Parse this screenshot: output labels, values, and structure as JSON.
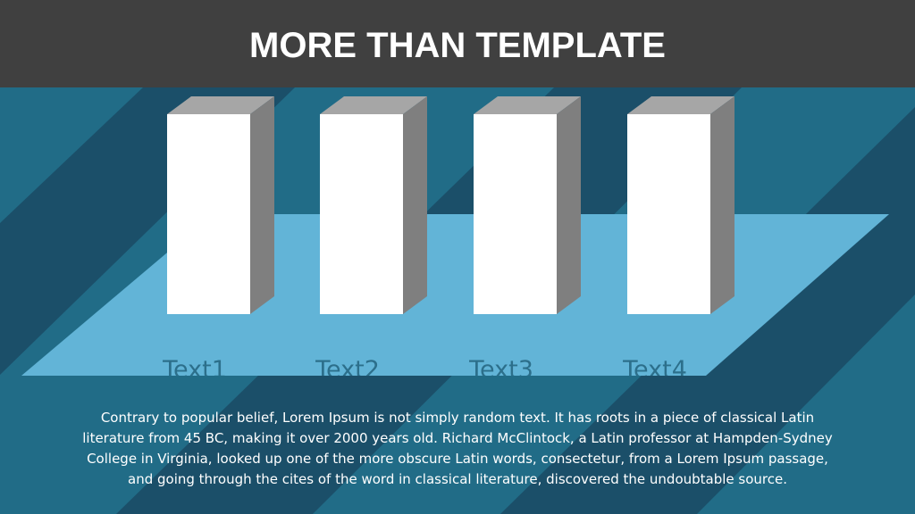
{
  "header": {
    "title": "MORE THAN TEMPLATE"
  },
  "items": [
    {
      "label": "Text1"
    },
    {
      "label": "Text2"
    },
    {
      "label": "Text3"
    },
    {
      "label": "Text4"
    }
  ],
  "body": {
    "lines": [
      "Contrary to popular belief, Lorem Ipsum is not simply random text. It has roots in a piece of classical Latin",
      "literature from 45 BC, making it over 2000 years old. Richard McClintock, a Latin professor at Hampden-Sydney",
      "College in Virginia, looked up one of the more obscure Latin words, consectetur, from a Lorem Ipsum passage,",
      "and going through the cites of the word in classical literature, discovered the undoubtable source."
    ]
  }
}
